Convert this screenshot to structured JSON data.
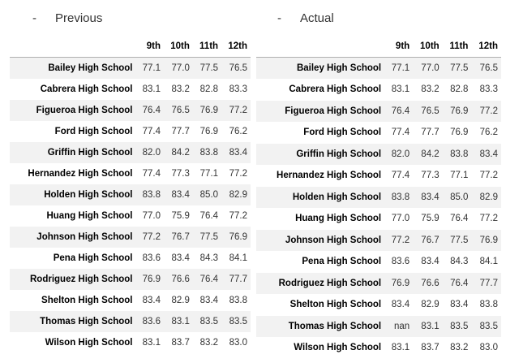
{
  "previous": {
    "dash": "-",
    "title": "Previous",
    "columns": [
      "9th",
      "10th",
      "11th",
      "12th"
    ],
    "rows": [
      {
        "school": "Bailey High School",
        "v": [
          "77.1",
          "77.0",
          "77.5",
          "76.5"
        ]
      },
      {
        "school": "Cabrera High School",
        "v": [
          "83.1",
          "83.2",
          "82.8",
          "83.3"
        ]
      },
      {
        "school": "Figueroa High School",
        "v": [
          "76.4",
          "76.5",
          "76.9",
          "77.2"
        ]
      },
      {
        "school": "Ford High School",
        "v": [
          "77.4",
          "77.7",
          "76.9",
          "76.2"
        ]
      },
      {
        "school": "Griffin High School",
        "v": [
          "82.0",
          "84.2",
          "83.8",
          "83.4"
        ]
      },
      {
        "school": "Hernandez High School",
        "v": [
          "77.4",
          "77.3",
          "77.1",
          "77.2"
        ]
      },
      {
        "school": "Holden High School",
        "v": [
          "83.8",
          "83.4",
          "85.0",
          "82.9"
        ]
      },
      {
        "school": "Huang High School",
        "v": [
          "77.0",
          "75.9",
          "76.4",
          "77.2"
        ]
      },
      {
        "school": "Johnson High School",
        "v": [
          "77.2",
          "76.7",
          "77.5",
          "76.9"
        ]
      },
      {
        "school": "Pena High School",
        "v": [
          "83.6",
          "83.4",
          "84.3",
          "84.1"
        ]
      },
      {
        "school": "Rodriguez High School",
        "v": [
          "76.9",
          "76.6",
          "76.4",
          "77.7"
        ]
      },
      {
        "school": "Shelton High School",
        "v": [
          "83.4",
          "82.9",
          "83.4",
          "83.8"
        ]
      },
      {
        "school": "Thomas High School",
        "v": [
          "83.6",
          "83.1",
          "83.5",
          "83.5"
        ]
      },
      {
        "school": "Wilson High School",
        "v": [
          "83.1",
          "83.7",
          "83.2",
          "83.0"
        ]
      }
    ]
  },
  "actual": {
    "dash": "-",
    "title": "Actual",
    "columns": [
      "9th",
      "10th",
      "11th",
      "12th"
    ],
    "rows": [
      {
        "school": "Bailey High School",
        "v": [
          "77.1",
          "77.0",
          "77.5",
          "76.5"
        ]
      },
      {
        "school": "Cabrera High School",
        "v": [
          "83.1",
          "83.2",
          "82.8",
          "83.3"
        ]
      },
      {
        "school": "Figueroa High School",
        "v": [
          "76.4",
          "76.5",
          "76.9",
          "77.2"
        ]
      },
      {
        "school": "Ford High School",
        "v": [
          "77.4",
          "77.7",
          "76.9",
          "76.2"
        ]
      },
      {
        "school": "Griffin High School",
        "v": [
          "82.0",
          "84.2",
          "83.8",
          "83.4"
        ]
      },
      {
        "school": "Hernandez High School",
        "v": [
          "77.4",
          "77.3",
          "77.1",
          "77.2"
        ]
      },
      {
        "school": "Holden High School",
        "v": [
          "83.8",
          "83.4",
          "85.0",
          "82.9"
        ]
      },
      {
        "school": "Huang High School",
        "v": [
          "77.0",
          "75.9",
          "76.4",
          "77.2"
        ]
      },
      {
        "school": "Johnson High School",
        "v": [
          "77.2",
          "76.7",
          "77.5",
          "76.9"
        ]
      },
      {
        "school": "Pena High School",
        "v": [
          "83.6",
          "83.4",
          "84.3",
          "84.1"
        ]
      },
      {
        "school": "Rodriguez High School",
        "v": [
          "76.9",
          "76.6",
          "76.4",
          "77.7"
        ]
      },
      {
        "school": "Shelton High School",
        "v": [
          "83.4",
          "82.9",
          "83.4",
          "83.8"
        ]
      },
      {
        "school": "Thomas High School",
        "v": [
          "nan",
          "83.1",
          "83.5",
          "83.5"
        ]
      },
      {
        "school": "Wilson High School",
        "v": [
          "83.1",
          "83.7",
          "83.2",
          "83.0"
        ]
      }
    ]
  }
}
